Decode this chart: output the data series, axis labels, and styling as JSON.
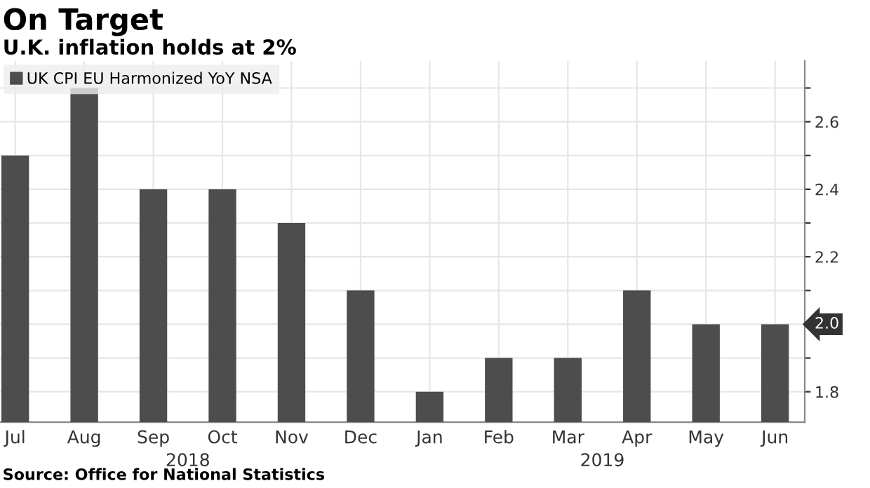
{
  "chart_data": {
    "type": "bar",
    "title": "On Target",
    "subtitle": "U.K. inflation holds at 2%",
    "categories": [
      "Jul",
      "Aug",
      "Sep",
      "Oct",
      "Nov",
      "Dec",
      "Jan",
      "Feb",
      "Mar",
      "Apr",
      "May",
      "Jun"
    ],
    "series": [
      {
        "name": "UK CPI EU Harmonized YoY NSA",
        "color": "#4d4d4d",
        "values": [
          2.5,
          2.7,
          2.4,
          2.4,
          2.3,
          2.1,
          1.8,
          1.9,
          1.9,
          2.1,
          2.0,
          2.0
        ]
      }
    ],
    "ylim": [
      1.71,
      2.78
    ],
    "yticks": [
      1.8,
      {
        "value": 1.9,
        "label": null
      },
      {
        "value": 2.0,
        "label": null
      },
      {
        "value": 2.1,
        "label": null
      },
      2.2,
      {
        "value": 2.3,
        "label": null
      },
      2.4,
      {
        "value": 2.5,
        "label": null
      },
      2.6,
      {
        "value": 2.7,
        "label": null
      }
    ],
    "grid": true,
    "legend": "top left",
    "annotations": [
      "2018",
      "2019",
      "2.0",
      "Source: Office for National Statistics"
    ]
  }
}
